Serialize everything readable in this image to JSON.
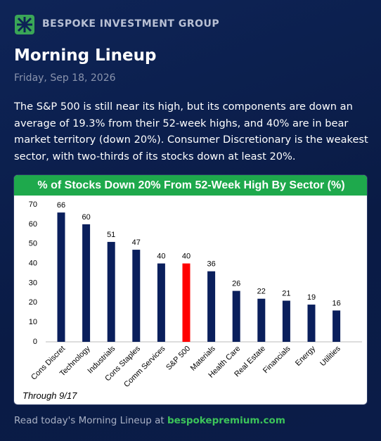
{
  "brand": "BESPOKE INVESTMENT GROUP",
  "header": {
    "title": "Morning Lineup",
    "date": "Friday, Sep 18, 2026"
  },
  "summary": "The S&P 500 is still near its high, but its components are down an average of 19.3% from their 52-week highs, and 40% are in bear market territory (down 20%). Consumer Discretionary is the weakest sector, with two-thirds of its stocks down at least 20%.",
  "chart_data": {
    "type": "bar",
    "title": "% of Stocks Down 20% From 52-Week High By Sector (%)",
    "categories": [
      "Cons Discret",
      "Technology",
      "Industrials",
      "Cons Staples",
      "Comm Services",
      "S&P 500",
      "Materials",
      "Health Care",
      "Real Estate",
      "Financials",
      "Energy",
      "Utilities"
    ],
    "values": [
      66,
      60,
      51,
      47,
      40,
      40,
      36,
      26,
      22,
      21,
      19,
      16
    ],
    "colors": [
      "#0a1f5c",
      "#0a1f5c",
      "#0a1f5c",
      "#0a1f5c",
      "#0a1f5c",
      "#ff0000",
      "#0a1f5c",
      "#0a1f5c",
      "#0a1f5c",
      "#0a1f5c",
      "#0a1f5c",
      "#0a1f5c"
    ],
    "ylim": [
      0,
      70
    ],
    "yticks": [
      0,
      10,
      20,
      30,
      40,
      50,
      60,
      70
    ],
    "grid": false,
    "note": "Through 9/17"
  },
  "footer": {
    "text": "Read today's Morning Lineup at",
    "link": "bespokepremium.com"
  }
}
